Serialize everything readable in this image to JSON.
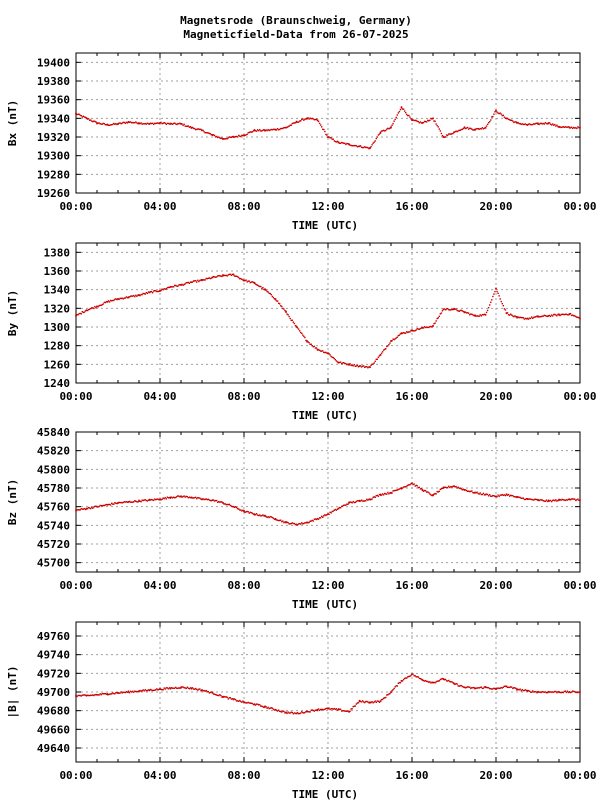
{
  "title_line1": "Magnetsrode (Braunschweig, Germany)",
  "title_line2": "Magneticfield-Data from 26-07-2025",
  "trace_color": "#cc0000",
  "chart_data": [
    {
      "type": "scatter",
      "ylabel": "Bx (nT)",
      "xlabel": "TIME (UTC)",
      "xticks": [
        "00:00",
        "04:00",
        "08:00",
        "12:00",
        "16:00",
        "20:00",
        "00:00"
      ],
      "xlim": [
        0,
        24
      ],
      "ylim": [
        19260,
        19410
      ],
      "yticks": [
        19260,
        19280,
        19300,
        19320,
        19340,
        19360,
        19380,
        19400
      ],
      "x": [
        0,
        0.5,
        1,
        1.5,
        2,
        2.5,
        3,
        3.5,
        4,
        4.5,
        5,
        5.5,
        6,
        6.5,
        7,
        7.5,
        8,
        8.5,
        9,
        9.5,
        10,
        10.5,
        11,
        11.5,
        12,
        12.5,
        13,
        13.5,
        14,
        14.5,
        15,
        15.5,
        16,
        16.5,
        17,
        17.5,
        18,
        18.5,
        19,
        19.5,
        20,
        20.5,
        21,
        21.5,
        22,
        22.5,
        23,
        23.5,
        24
      ],
      "y": [
        19345,
        19340,
        19335,
        19333,
        19334,
        19336,
        19335,
        19334,
        19335,
        19334,
        19334,
        19330,
        19327,
        19322,
        19318,
        19320,
        19322,
        19327,
        19327,
        19328,
        19330,
        19336,
        19340,
        19338,
        19320,
        19314,
        19312,
        19310,
        19308,
        19325,
        19330,
        19352,
        19338,
        19335,
        19340,
        19320,
        19325,
        19330,
        19328,
        19330,
        19348,
        19340,
        19335,
        19333,
        19334,
        19335,
        19331,
        19330,
        19330
      ]
    },
    {
      "type": "scatter",
      "ylabel": "By (nT)",
      "xlabel": "TIME (UTC)",
      "xticks": [
        "00:00",
        "04:00",
        "08:00",
        "12:00",
        "16:00",
        "20:00",
        "00:00"
      ],
      "xlim": [
        0,
        24
      ],
      "ylim": [
        1240,
        1390
      ],
      "yticks": [
        1240,
        1260,
        1280,
        1300,
        1320,
        1340,
        1360,
        1380
      ],
      "x": [
        0,
        0.5,
        1,
        1.5,
        2,
        2.5,
        3,
        3.5,
        4,
        4.5,
        5,
        5.5,
        6,
        6.5,
        7,
        7.5,
        8,
        8.5,
        9,
        9.5,
        10,
        10.5,
        11,
        11.5,
        12,
        12.5,
        13,
        13.5,
        14,
        14.5,
        15,
        15.5,
        16,
        16.5,
        17,
        17.5,
        18,
        18.5,
        19,
        19.5,
        20,
        20.5,
        21,
        21.5,
        22,
        22.5,
        23,
        23.5,
        24
      ],
      "y": [
        1312,
        1318,
        1322,
        1327,
        1330,
        1332,
        1334,
        1337,
        1339,
        1343,
        1345,
        1348,
        1350,
        1353,
        1355,
        1356,
        1350,
        1347,
        1340,
        1330,
        1316,
        1300,
        1285,
        1276,
        1272,
        1262,
        1260,
        1258,
        1257,
        1270,
        1285,
        1293,
        1296,
        1299,
        1301,
        1319,
        1319,
        1316,
        1312,
        1313,
        1341,
        1315,
        1310,
        1309,
        1311,
        1312,
        1313,
        1314,
        1309
      ]
    },
    {
      "type": "scatter",
      "ylabel": "Bz (nT)",
      "xlabel": "TIME (UTC)",
      "xticks": [
        "00:00",
        "04:00",
        "08:00",
        "12:00",
        "16:00",
        "20:00",
        "00:00"
      ],
      "xlim": [
        0,
        24
      ],
      "ylim": [
        45690,
        45840
      ],
      "yticks": [
        45700,
        45720,
        45740,
        45760,
        45780,
        45800,
        45820,
        45840
      ],
      "x": [
        0,
        0.5,
        1,
        1.5,
        2,
        2.5,
        3,
        3.5,
        4,
        4.5,
        5,
        5.5,
        6,
        6.5,
        7,
        7.5,
        8,
        8.5,
        9,
        9.5,
        10,
        10.5,
        11,
        11.5,
        12,
        12.5,
        13,
        13.5,
        14,
        14.5,
        15,
        15.5,
        16,
        16.5,
        17,
        17.5,
        18,
        18.5,
        19,
        19.5,
        20,
        20.5,
        21,
        21.5,
        22,
        22.5,
        23,
        23.5,
        24
      ],
      "y": [
        45756,
        45758,
        45760,
        45762,
        45764,
        45765,
        45766,
        45767,
        45768,
        45770,
        45771,
        45770,
        45768,
        45767,
        45764,
        45760,
        45755,
        45752,
        45750,
        45747,
        45743,
        45741,
        45743,
        45747,
        45752,
        45758,
        45764,
        45766,
        45768,
        45773,
        45775,
        45780,
        45785,
        45778,
        45772,
        45780,
        45782,
        45778,
        45775,
        45773,
        45771,
        45773,
        45770,
        45768,
        45767,
        45766,
        45767,
        45768,
        45767
      ]
    },
    {
      "type": "scatter",
      "ylabel": "|B| (nT)",
      "xlabel": "TIME (UTC)",
      "xticks": [
        "00:00",
        "04:00",
        "08:00",
        "12:00",
        "16:00",
        "20:00",
        "00:00"
      ],
      "xlim": [
        0,
        24
      ],
      "ylim": [
        49625,
        49775
      ],
      "yticks": [
        49640,
        49660,
        49680,
        49700,
        49720,
        49740,
        49760
      ],
      "x": [
        0,
        0.5,
        1,
        1.5,
        2,
        2.5,
        3,
        3.5,
        4,
        4.5,
        5,
        5.5,
        6,
        6.5,
        7,
        7.5,
        8,
        8.5,
        9,
        9.5,
        10,
        10.5,
        11,
        11.5,
        12,
        12.5,
        13,
        13.5,
        14,
        14.5,
        15,
        15.5,
        16,
        16.5,
        17,
        17.5,
        18,
        18.5,
        19,
        19.5,
        20,
        20.5,
        21,
        21.5,
        22,
        22.5,
        23,
        23.5,
        24
      ],
      "y": [
        49696,
        49696,
        49697,
        49698,
        49699,
        49700,
        49701,
        49702,
        49703,
        49704,
        49705,
        49704,
        49702,
        49699,
        49695,
        49692,
        49689,
        49687,
        49684,
        49681,
        49678,
        49677,
        49679,
        49681,
        49682,
        49681,
        49679,
        49690,
        49689,
        49690,
        49700,
        49712,
        49719,
        49713,
        49710,
        49714,
        49709,
        49705,
        49704,
        49705,
        49703,
        49706,
        49703,
        49701,
        49700,
        49700,
        49700,
        49700,
        49700
      ]
    }
  ]
}
